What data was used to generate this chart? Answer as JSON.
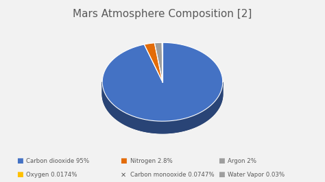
{
  "title": "Mars Atmosphere Composition [2]",
  "slices": [
    95,
    2.8,
    2,
    0.0174,
    0.0747,
    0.03
  ],
  "labels": [
    "Carbon diooxide 95%",
    "Nitrogen 2.8%",
    "Argon 2%",
    "Oxygen 0.0174%",
    "Carbon monooxide 0.0747%",
    "Water Vapor 0.03%"
  ],
  "colors": [
    "#4472c4",
    "#e36c09",
    "#9e9e9e",
    "#ffc000",
    "#7f7f7f",
    "#9e9e9e"
  ],
  "legend_colors": [
    "#4472c4",
    "#e36c09",
    "#9e9e9e",
    "#ffc000",
    "#595959",
    "#9e9e9e"
  ],
  "legend_markers": [
    "s",
    "s",
    "s",
    "s",
    "x",
    "s"
  ],
  "background_color": "#f2f2f2",
  "title_color": "#595959",
  "title_fontsize": 11,
  "startangle": 90
}
